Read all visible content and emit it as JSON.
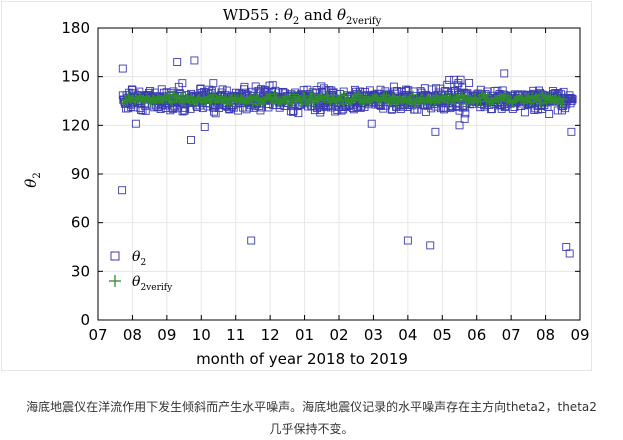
{
  "chart_data": {
    "type": "scatter",
    "title": "WD55 : θ2 and θ2verify",
    "title_parts": {
      "prefix": "WD55 : ",
      "sym1": "θ",
      "sub1": "2",
      "mid": " and ",
      "sym2": "θ",
      "sub2": "2verify"
    },
    "xlabel": "month of year 2018 to 2019",
    "ylabel": "θ2",
    "ylabel_parts": {
      "sym": "θ",
      "sub": "2"
    },
    "xlim": [
      7.0,
      9.0
    ],
    "ylim": [
      0,
      180
    ],
    "x_ticks": [
      7.0,
      8.0,
      9.0,
      10.0,
      11.0,
      12.0,
      13.0,
      14.0,
      15.0,
      16.0,
      17.0,
      18.0,
      19.0,
      20.0,
      21.0
    ],
    "x_tick_labels": [
      "07",
      "08",
      "09",
      "10",
      "11",
      "12",
      "01",
      "02",
      "03",
      "04",
      "05",
      "06",
      "07",
      "08",
      "09"
    ],
    "y_ticks": [
      0,
      30,
      60,
      90,
      120,
      150,
      180
    ],
    "y_tick_labels": [
      "0",
      "30",
      "60",
      "90",
      "120",
      "150",
      "180"
    ],
    "x_range": [
      7.0,
      21.0
    ],
    "grid": true,
    "legend_position": "bottom-left",
    "series": [
      {
        "name": "θ2",
        "legend_parts": {
          "sym": "θ",
          "sub": "2"
        },
        "marker": "square",
        "color": "#3b3bb3",
        "x_start": 7.72,
        "x_end": 20.8,
        "baseline": 136,
        "outliers": [
          [
            7.7,
            80
          ],
          [
            7.72,
            155
          ],
          [
            8.1,
            121
          ],
          [
            9.3,
            159
          ],
          [
            9.45,
            146
          ],
          [
            9.7,
            111
          ],
          [
            9.8,
            160
          ],
          [
            10.1,
            119
          ],
          [
            10.35,
            146
          ],
          [
            11.45,
            49
          ],
          [
            14.95,
            121
          ],
          [
            16.0,
            49
          ],
          [
            16.65,
            46
          ],
          [
            16.8,
            116
          ],
          [
            17.2,
            148
          ],
          [
            17.5,
            120
          ],
          [
            17.65,
            124
          ],
          [
            18.8,
            152
          ],
          [
            19.4,
            128
          ],
          [
            20.6,
            45
          ],
          [
            20.7,
            41
          ],
          [
            20.75,
            116
          ]
        ]
      },
      {
        "name": "θ2verify",
        "legend_parts": {
          "sym": "θ",
          "sub": "2verify"
        },
        "marker": "plus",
        "color": "#2e8b2e",
        "x_start": 7.75,
        "x_end": 20.55,
        "baseline": 136
      }
    ]
  },
  "caption": {
    "line1": "海底地震仪在洋流作用下发生倾斜而产生水平噪声。海底地震仪记录的水平噪声存在主方向theta2，theta2",
    "line2": "几乎保持不变。"
  }
}
